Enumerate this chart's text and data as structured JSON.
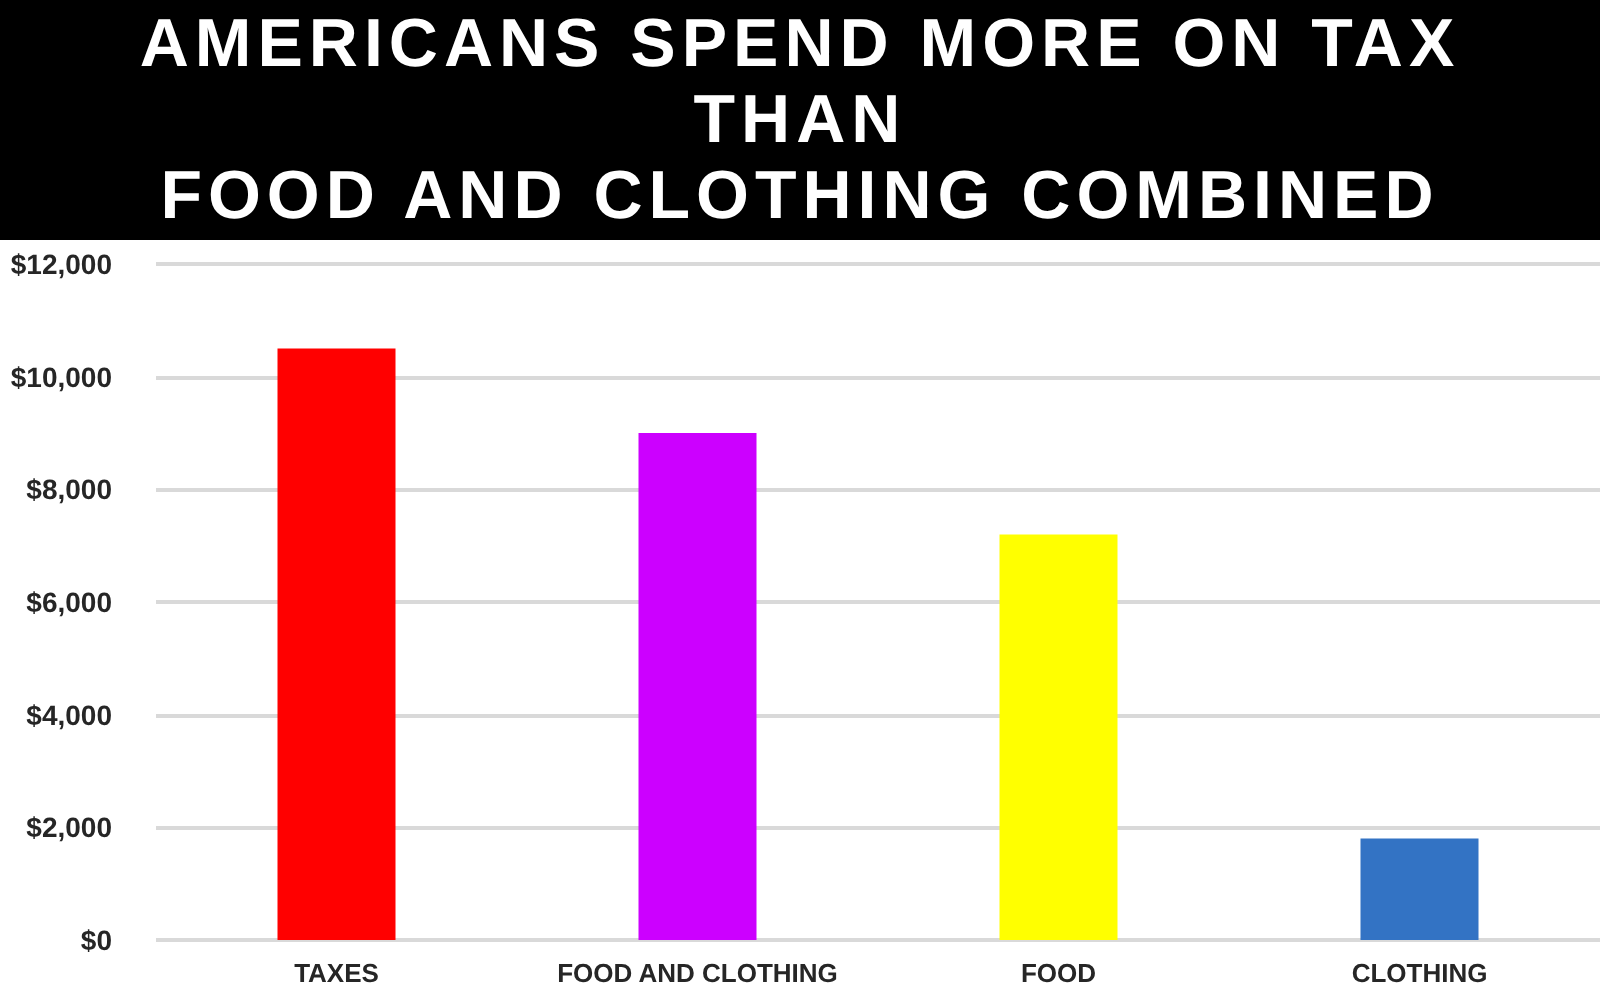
{
  "chart_data": {
    "type": "bar",
    "title": "AMERICANS SPEND MORE ON TAX\nTHAN\nFOOD AND CLOTHING COMBINED",
    "categories": [
      "TAXES",
      "FOOD AND CLOTHING",
      "FOOD",
      "CLOTHING"
    ],
    "values": [
      10500,
      9000,
      7200,
      1800
    ],
    "colors": [
      "#ff0000",
      "#cc00ff",
      "#ffff00",
      "#3373c4"
    ],
    "ylim": [
      0,
      12000
    ],
    "yticks": [
      {
        "value": 0,
        "label": "$0"
      },
      {
        "value": 2000,
        "label": "$2,000"
      },
      {
        "value": 4000,
        "label": "$4,000"
      },
      {
        "value": 6000,
        "label": "$6,000"
      },
      {
        "value": 8000,
        "label": "$8,000"
      },
      {
        "value": 10000,
        "label": "$10,000"
      },
      {
        "value": 12000,
        "label": "$12,000"
      }
    ],
    "grid": "y"
  }
}
